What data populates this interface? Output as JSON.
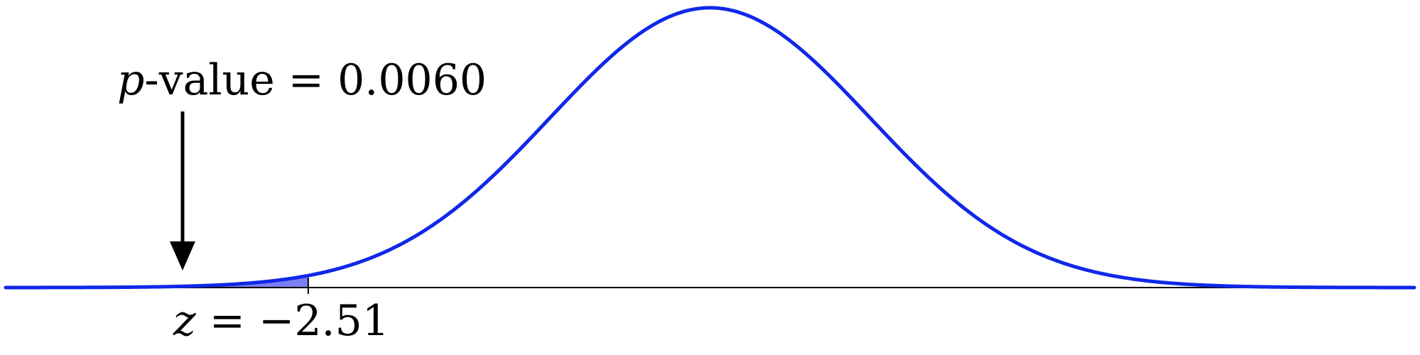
{
  "chart_data": {
    "type": "area",
    "distribution": "standard normal",
    "title": "",
    "xlabel": "",
    "ylabel": "",
    "xlim": [
      -4.4,
      4.4
    ],
    "curve_color": "#1028e8",
    "shade_color": "#7b7ff2",
    "axis_color": "#000000",
    "grid": false,
    "shaded_region": {
      "from": -4.4,
      "to": -2.51,
      "tail": "left"
    },
    "critical_value": {
      "z": -2.51,
      "label_var": "z",
      "label_rest": " = −2.51"
    },
    "annotation": {
      "var": "p",
      "text": "-value = 0.0060",
      "p_value": 0.006
    }
  }
}
